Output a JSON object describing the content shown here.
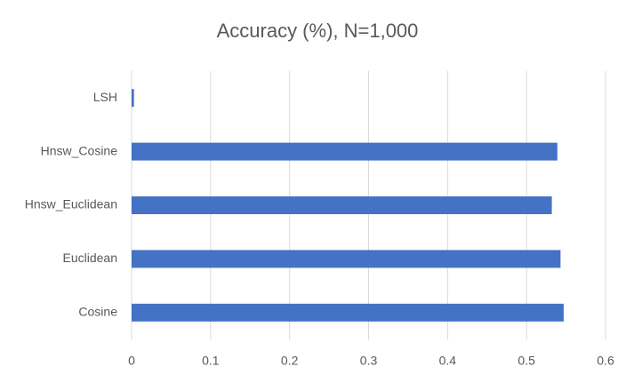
{
  "chart_data": {
    "type": "barh",
    "title": "Accuracy (%), N=1,000",
    "categories": [
      "LSH",
      "Hnsw_Cosine",
      "Hnsw_Euclidean",
      "Euclidean",
      "Cosine"
    ],
    "values": [
      0.003,
      0.539,
      0.532,
      0.543,
      0.547
    ],
    "color": "#4472c4",
    "xlim": [
      0,
      0.6
    ],
    "xticks": [
      0,
      0.1,
      0.2,
      0.3,
      0.4,
      0.5,
      0.6
    ],
    "grid": true
  }
}
